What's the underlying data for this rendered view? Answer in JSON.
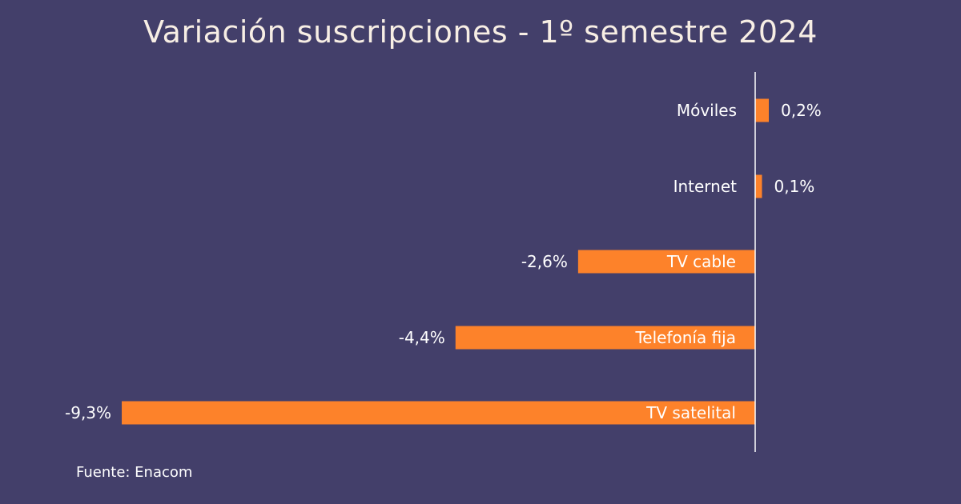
{
  "chart_data": {
    "type": "bar",
    "orientation": "horizontal",
    "title": "Variación suscripciones - 1º semestre 2024",
    "categories": [
      "Móviles",
      "Internet",
      "TV cable",
      "Telefonía fija",
      "TV satelital"
    ],
    "values": [
      0.2,
      0.1,
      -2.6,
      -4.4,
      -9.3
    ],
    "value_labels": [
      "0,2%",
      "0,1%",
      "-2,6%",
      "-4,4%",
      "-9,3%"
    ],
    "unit": "%",
    "grid": false,
    "legend": "none",
    "colors": {
      "background": "#433f6a",
      "bar": "#fd822a",
      "axis": "#ffffff",
      "text": "#ffffff",
      "title": "#f7eee4"
    }
  },
  "source_note": "Fuente: Enacom"
}
